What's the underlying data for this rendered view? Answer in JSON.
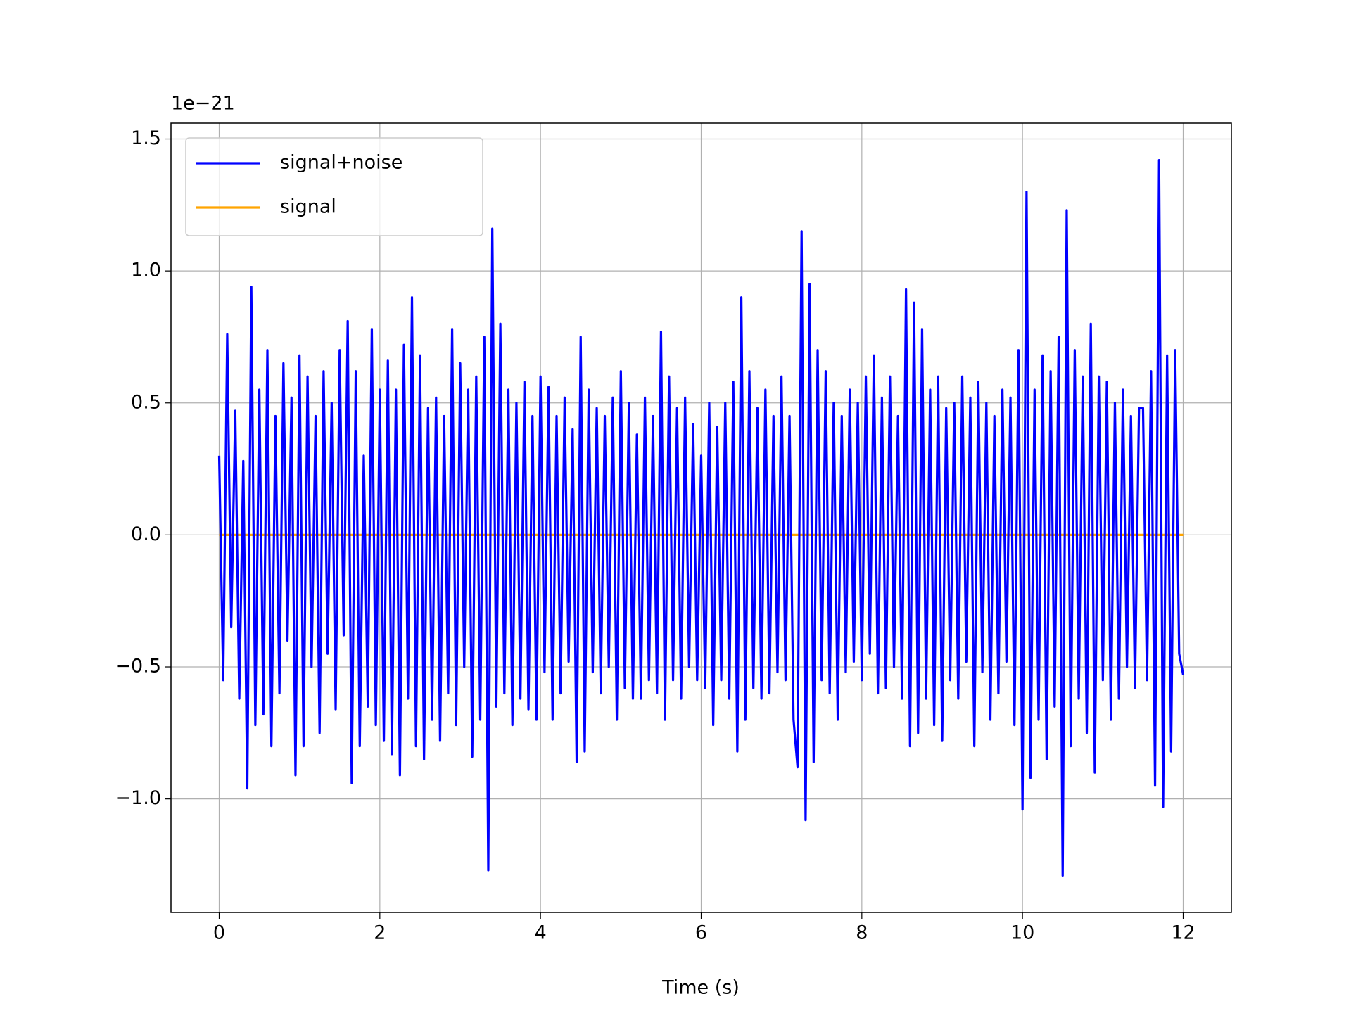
{
  "chart_data": {
    "type": "line",
    "offset_label": "1e−21",
    "x_label": "Time (s)",
    "xlim": [
      -0.6,
      12.6
    ],
    "ylim": [
      -1.43,
      1.56
    ],
    "xticks": [
      0,
      2,
      4,
      6,
      8,
      10,
      12
    ],
    "yticks": [
      {
        "value": -1.0,
        "label": "−1.0"
      },
      {
        "value": -0.5,
        "label": "−0.5"
      },
      {
        "value": 0.0,
        "label": "0.0"
      },
      {
        "value": 0.5,
        "label": "0.5"
      },
      {
        "value": 1.0,
        "label": "1.0"
      },
      {
        "value": 1.5,
        "label": "1.5"
      }
    ],
    "grid": true,
    "legend": "upper left",
    "series": [
      {
        "name": "signal+noise",
        "color": "#0000ff",
        "x": [
          0,
          0.05,
          0.1,
          0.15,
          0.2,
          0.25,
          0.3,
          0.35,
          0.4,
          0.45,
          0.5,
          0.55,
          0.6,
          0.65,
          0.7,
          0.75,
          0.8,
          0.85,
          0.9,
          0.95,
          1,
          1.05,
          1.1,
          1.15,
          1.2,
          1.25,
          1.3,
          1.35,
          1.4,
          1.45,
          1.5,
          1.55,
          1.6,
          1.65,
          1.7,
          1.75,
          1.8,
          1.85,
          1.9,
          1.95,
          2,
          2.05,
          2.1,
          2.15,
          2.2,
          2.25,
          2.3,
          2.35,
          2.4,
          2.45,
          2.5,
          2.55,
          2.6,
          2.65,
          2.7,
          2.75,
          2.8,
          2.85,
          2.9,
          2.95,
          3,
          3.05,
          3.1,
          3.15,
          3.2,
          3.25,
          3.3,
          3.35,
          3.4,
          3.45,
          3.5,
          3.55,
          3.6,
          3.65,
          3.7,
          3.75,
          3.8,
          3.85,
          3.9,
          3.95,
          4,
          4.05,
          4.1,
          4.15,
          4.2,
          4.25,
          4.3,
          4.35,
          4.4,
          4.45,
          4.5,
          4.55,
          4.6,
          4.65,
          4.7,
          4.75,
          4.8,
          4.85,
          4.9,
          4.95,
          5,
          5.05,
          5.1,
          5.15,
          5.2,
          5.25,
          5.3,
          5.35,
          5.4,
          5.45,
          5.5,
          5.55,
          5.6,
          5.65,
          5.7,
          5.75,
          5.8,
          5.85,
          5.9,
          5.95,
          6,
          6.05,
          6.1,
          6.15,
          6.2,
          6.25,
          6.3,
          6.35,
          6.4,
          6.45,
          6.5,
          6.55,
          6.6,
          6.65,
          6.7,
          6.75,
          6.8,
          6.85,
          6.9,
          6.95,
          7,
          7.05,
          7.1,
          7.15,
          7.2,
          7.25,
          7.3,
          7.35,
          7.4,
          7.45,
          7.5,
          7.55,
          7.6,
          7.65,
          7.7,
          7.75,
          7.8,
          7.85,
          7.9,
          7.95,
          8,
          8.05,
          8.1,
          8.15,
          8.2,
          8.25,
          8.3,
          8.35,
          8.4,
          8.45,
          8.5,
          8.55,
          8.6,
          8.65,
          8.7,
          8.75,
          8.8,
          8.85,
          8.9,
          8.95,
          9,
          9.05,
          9.1,
          9.15,
          9.2,
          9.25,
          9.3,
          9.35,
          9.4,
          9.45,
          9.5,
          9.55,
          9.6,
          9.65,
          9.7,
          9.75,
          9.8,
          9.85,
          9.9,
          9.95,
          10,
          10.05,
          10.1,
          10.15,
          10.2,
          10.25,
          10.3,
          10.35,
          10.4,
          10.45,
          10.5,
          10.55,
          10.6,
          10.65,
          10.7,
          10.75,
          10.8,
          10.85,
          10.9,
          10.95,
          11,
          11.05,
          11.1,
          11.15,
          11.2,
          11.25,
          11.3,
          11.35,
          11.4,
          11.45,
          11.5,
          11.55,
          11.6,
          11.65,
          11.7,
          11.75,
          11.8,
          11.85,
          11.9,
          11.95,
          12
        ],
        "values": [
          0.3,
          -0.55,
          0.76,
          -0.35,
          0.47,
          -0.62,
          0.28,
          -0.96,
          0.94,
          -0.72,
          0.55,
          -0.68,
          0.7,
          -0.8,
          0.45,
          -0.6,
          0.65,
          -0.4,
          0.52,
          -0.91,
          0.68,
          -0.8,
          0.6,
          -0.5,
          0.45,
          -0.75,
          0.62,
          -0.45,
          0.5,
          -0.66,
          0.7,
          -0.38,
          0.81,
          -0.94,
          0.62,
          -0.8,
          0.3,
          -0.65,
          0.78,
          -0.72,
          0.55,
          -0.78,
          0.66,
          -0.83,
          0.55,
          -0.91,
          0.72,
          -0.62,
          0.9,
          -0.8,
          0.68,
          -0.85,
          0.48,
          -0.7,
          0.52,
          -0.78,
          0.45,
          -0.6,
          0.78,
          -0.72,
          0.65,
          -0.5,
          0.55,
          -0.84,
          0.6,
          -0.7,
          0.75,
          -1.27,
          1.16,
          -0.65,
          0.8,
          -0.6,
          0.55,
          -0.72,
          0.5,
          -0.62,
          0.58,
          -0.66,
          0.45,
          -0.7,
          0.6,
          -0.52,
          0.56,
          -0.7,
          0.45,
          -0.6,
          0.52,
          -0.48,
          0.4,
          -0.86,
          0.75,
          -0.82,
          0.55,
          -0.52,
          0.48,
          -0.6,
          0.45,
          -0.5,
          0.52,
          -0.7,
          0.62,
          -0.58,
          0.5,
          -0.62,
          0.38,
          -0.62,
          0.52,
          -0.55,
          0.45,
          -0.6,
          0.77,
          -0.7,
          0.6,
          -0.55,
          0.48,
          -0.62,
          0.52,
          -0.5,
          0.42,
          -0.55,
          0.3,
          -0.58,
          0.5,
          -0.72,
          0.41,
          -0.55,
          0.5,
          -0.62,
          0.58,
          -0.82,
          0.9,
          -0.7,
          0.62,
          -0.58,
          0.48,
          -0.62,
          0.55,
          -0.6,
          0.45,
          -0.52,
          0.6,
          -0.55,
          0.45,
          -0.7,
          -0.88,
          1.15,
          -1.08,
          0.95,
          -0.86,
          0.7,
          -0.55,
          0.62,
          -0.6,
          0.5,
          -0.7,
          0.45,
          -0.52,
          0.55,
          -0.48,
          0.5,
          -0.55,
          0.6,
          -0.45,
          0.68,
          -0.6,
          0.52,
          -0.58,
          0.6,
          -0.5,
          0.45,
          -0.62,
          0.93,
          -0.8,
          0.88,
          -0.75,
          0.78,
          -0.62,
          0.55,
          -0.72,
          0.6,
          -0.78,
          0.48,
          -0.55,
          0.5,
          -0.62,
          0.6,
          -0.48,
          0.52,
          -0.8,
          0.58,
          -0.52,
          0.5,
          -0.7,
          0.45,
          -0.6,
          0.55,
          -0.48,
          0.52,
          -0.72,
          0.7,
          -1.04,
          1.3,
          -0.92,
          0.55,
          -0.7,
          0.68,
          -0.85,
          0.62,
          -0.65,
          0.75,
          -1.29,
          1.23,
          -0.8,
          0.7,
          -0.62,
          0.6,
          -0.75,
          0.8,
          -0.9,
          0.6,
          -0.55,
          0.58,
          -0.7,
          0.5,
          -0.62,
          0.55,
          -0.5,
          0.45,
          -0.58,
          0.48,
          0.48,
          -0.55,
          0.62,
          -0.95,
          1.42,
          -1.03,
          0.68,
          -0.82,
          0.7,
          -0.45,
          -0.53
        ]
      },
      {
        "name": "signal",
        "color": "#ffa500",
        "x": [
          0,
          12
        ],
        "values": [
          0,
          0
        ]
      }
    ]
  }
}
